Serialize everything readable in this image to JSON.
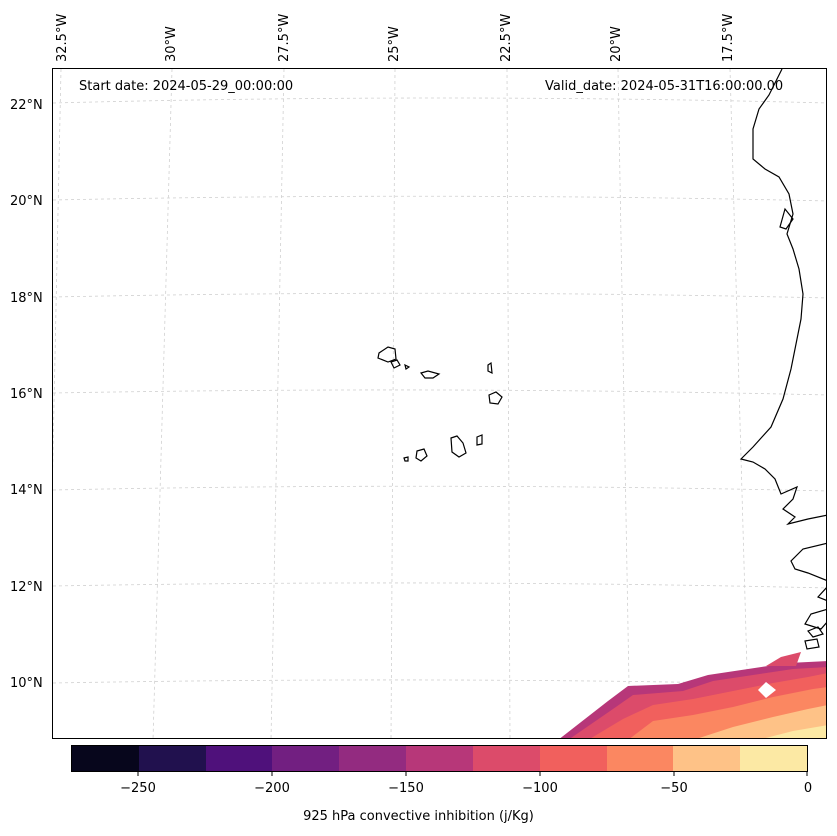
{
  "map": {
    "start_date": "Start date: 2024-05-29_00:00:00",
    "valid_date": "Valid_date: 2024-05-31T16:00:00.00",
    "lon_labels": [
      "32.5°W",
      "30°W",
      "27.5°W",
      "25°W",
      "22.5°W",
      "20°W",
      "17.5°W"
    ],
    "lat_labels": [
      "22°N",
      "20°N",
      "18°N",
      "16°N",
      "14°N",
      "12°N",
      "10°N"
    ],
    "variable": "925 hPa convective inhibition",
    "units": "j/Kg"
  },
  "colorbar": {
    "label": "925 hPa convective inhibition (j/Kg)",
    "levels": [
      -275,
      -250,
      -225,
      -200,
      -175,
      -150,
      -125,
      -100,
      -75,
      -50,
      -25,
      0
    ],
    "tick_labels": [
      "−250",
      "−200",
      "−150",
      "−100",
      "−50",
      "0"
    ],
    "colors": [
      "#07061c",
      "#21114e",
      "#4f117b",
      "#721f81",
      "#932b80",
      "#b73779",
      "#dc4b6a",
      "#f1605d",
      "#fb8761",
      "#fec287",
      "#fce9a4"
    ]
  }
}
